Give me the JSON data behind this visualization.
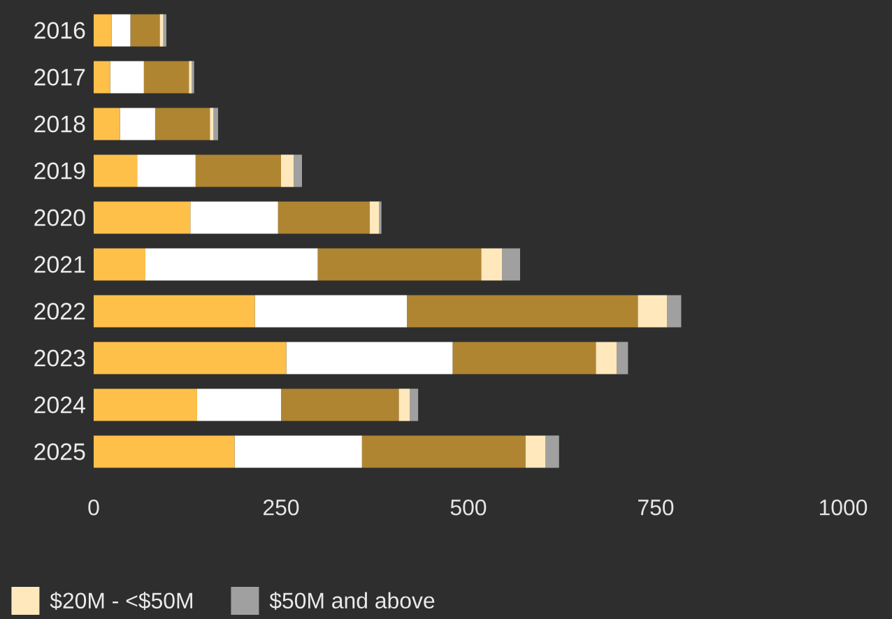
{
  "chart_data": {
    "type": "bar",
    "orientation": "horizontal",
    "stacked": true,
    "categories": [
      "2016",
      "2017",
      "2018",
      "2019",
      "2020",
      "2021",
      "2022",
      "2023",
      "2024",
      "2025"
    ],
    "series": [
      {
        "color": "#ffc04a",
        "values": [
          24,
          22,
          35,
          58,
          129,
          69,
          215,
          257,
          138,
          188
        ]
      },
      {
        "color": "#ffffff",
        "values": [
          25,
          45,
          47,
          78,
          117,
          230,
          203,
          222,
          112,
          170
        ]
      },
      {
        "color": "#b08532",
        "values": [
          39,
          60,
          73,
          114,
          122,
          218,
          308,
          191,
          157,
          218
        ]
      },
      {
        "name": "$20M - <$50M",
        "color": "#ffe8bc",
        "values": [
          5,
          4,
          5,
          17,
          13,
          28,
          39,
          28,
          15,
          27
        ]
      },
      {
        "name": "$50M and above",
        "color": "#a0a0a0",
        "values": [
          4,
          3,
          6,
          11,
          3,
          24,
          19,
          15,
          11,
          18
        ]
      }
    ],
    "xlim": [
      0,
      1000
    ],
    "xticks": [
      0,
      250,
      500,
      750,
      1000
    ],
    "legend": "bottom"
  }
}
